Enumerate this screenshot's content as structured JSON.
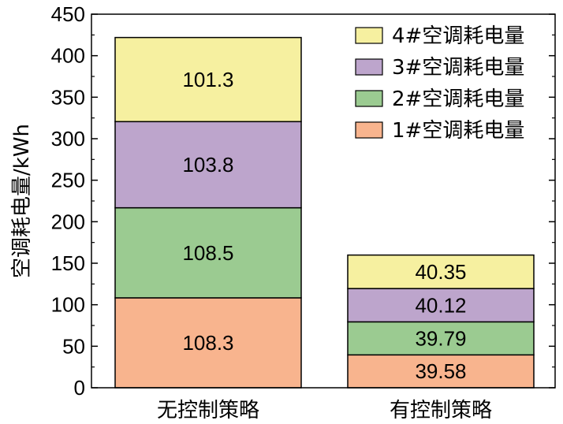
{
  "chart_data": {
    "type": "bar",
    "stacked": true,
    "categories": [
      "无控制策略",
      "有控制策略"
    ],
    "series": [
      {
        "name": "1#空调耗电量",
        "values": [
          108.3,
          39.58
        ],
        "color": "#F8B48E"
      },
      {
        "name": "2#空调耗电量",
        "values": [
          108.5,
          39.79
        ],
        "color": "#9BCB91"
      },
      {
        "name": "3#空调耗电量",
        "values": [
          103.8,
          40.12
        ],
        "color": "#BDA5CC"
      },
      {
        "name": "4#空调耗电量",
        "values": [
          101.3,
          40.35
        ],
        "color": "#F6F0A0"
      }
    ],
    "data_labels": [
      [
        "108.3",
        "39.58"
      ],
      [
        "108.5",
        "39.79"
      ],
      [
        "103.8",
        "40.12"
      ],
      [
        "101.3",
        "40.35"
      ]
    ],
    "ylabel": "空调耗电量/kWh",
    "ylim": [
      0,
      450
    ],
    "yticks": [
      0,
      50,
      100,
      150,
      200,
      250,
      300,
      350,
      400,
      450
    ],
    "legend_position": "top-right",
    "legend_order": [
      3,
      2,
      1,
      0
    ],
    "grid": false
  }
}
